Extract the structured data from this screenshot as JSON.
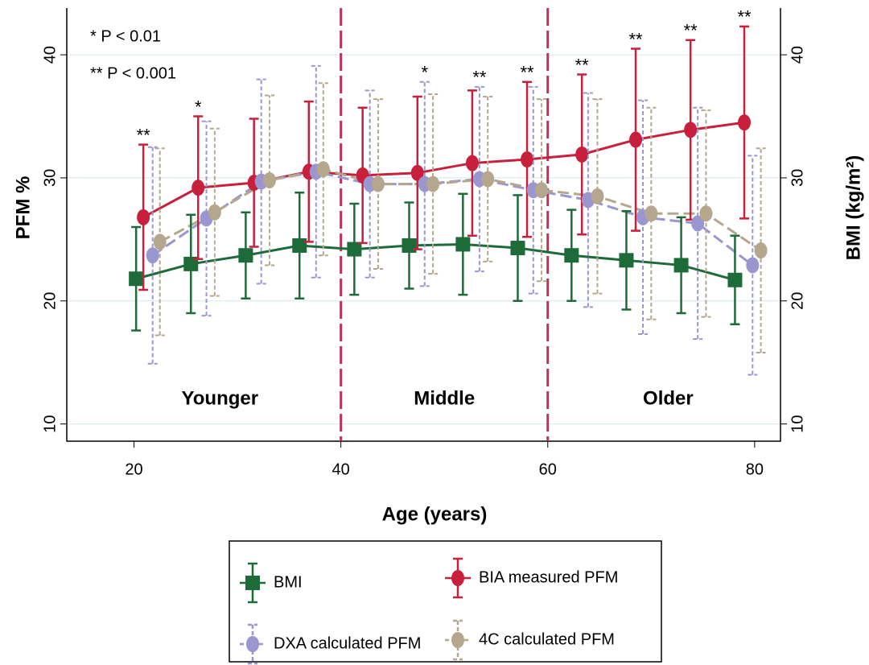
{
  "chart_data": {
    "type": "line",
    "xlabel": "Age (years)",
    "ylabel": "PFM %",
    "y2label": "BMI (kg/m²)",
    "xlim": [
      13.5,
      82.5
    ],
    "xticks": [
      20,
      40,
      60,
      80
    ],
    "ylim": [
      8.6,
      43.8
    ],
    "yticks": [
      10,
      20,
      30,
      40
    ],
    "y2lim": [
      8.6,
      43.8
    ],
    "y2ticks": [
      10,
      20,
      30,
      40
    ],
    "grid": true,
    "legend": "bottom",
    "annotations": [
      "* P < 0.01",
      "** P < 0.001"
    ],
    "dividers": [
      40,
      60
    ],
    "divider_color": "#b8325a",
    "regions": [
      "Younger",
      "Middle",
      "Older"
    ],
    "significance": [
      "**",
      "*",
      null,
      null,
      null,
      "*",
      "**",
      "**",
      "**",
      "**",
      "**",
      "**"
    ],
    "series": [
      {
        "name": "BMI",
        "color": "#1e6b3a",
        "marker": "square",
        "dashed": false,
        "axis": "y2",
        "x": [
          20.2,
          25.5,
          30.8,
          36.0,
          41.3,
          46.6,
          51.8,
          57.1,
          62.3,
          67.6,
          72.9,
          78.1
        ],
        "values": [
          21.8,
          23.0,
          23.7,
          24.5,
          24.2,
          24.5,
          24.6,
          24.3,
          23.7,
          23.3,
          22.9,
          21.7
        ],
        "errors": [
          4.2,
          4.0,
          3.5,
          4.3,
          3.7,
          3.5,
          4.1,
          4.3,
          3.7,
          4.0,
          3.9,
          3.6
        ]
      },
      {
        "name": "BIA measured PFM",
        "color": "#c8203c",
        "marker": "circle",
        "dashed": false,
        "x": [
          20.9,
          26.2,
          31.6,
          36.9,
          42.1,
          47.4,
          52.7,
          58.0,
          63.3,
          68.5,
          73.8,
          79.0
        ],
        "values": [
          26.8,
          29.2,
          29.6,
          30.5,
          30.2,
          30.4,
          31.2,
          31.5,
          31.9,
          33.1,
          33.9,
          34.5
        ],
        "errors": [
          5.9,
          5.8,
          5.2,
          5.7,
          5.5,
          6.2,
          5.9,
          6.3,
          6.5,
          7.4,
          7.3,
          7.8
        ]
      },
      {
        "name": "DXA calculated PFM",
        "color": "#9a96d0",
        "marker": "circle",
        "dashed": true,
        "x": [
          21.8,
          27.0,
          32.3,
          37.6,
          42.8,
          48.1,
          53.4,
          58.6,
          63.9,
          69.2,
          74.5,
          79.8
        ],
        "values": [
          23.7,
          26.7,
          29.7,
          30.5,
          29.5,
          29.5,
          29.9,
          29.0,
          28.2,
          26.8,
          26.3,
          22.9
        ],
        "errors": [
          8.8,
          7.9,
          8.3,
          8.6,
          7.6,
          8.3,
          7.5,
          8.4,
          8.7,
          9.5,
          9.4,
          8.9
        ]
      },
      {
        "name": "4C calculated PFM",
        "color": "#b5a68e",
        "marker": "circle",
        "dashed": true,
        "x": [
          22.5,
          27.8,
          33.1,
          38.3,
          43.6,
          48.9,
          54.2,
          59.4,
          64.8,
          70.0,
          75.3,
          80.6
        ],
        "values": [
          24.8,
          27.2,
          29.8,
          30.7,
          29.5,
          29.5,
          29.9,
          29.0,
          28.5,
          27.1,
          27.1,
          24.1
        ],
        "errors": [
          7.6,
          6.8,
          6.9,
          7.0,
          6.9,
          7.3,
          6.7,
          7.4,
          7.9,
          8.6,
          8.4,
          8.3
        ]
      }
    ]
  }
}
